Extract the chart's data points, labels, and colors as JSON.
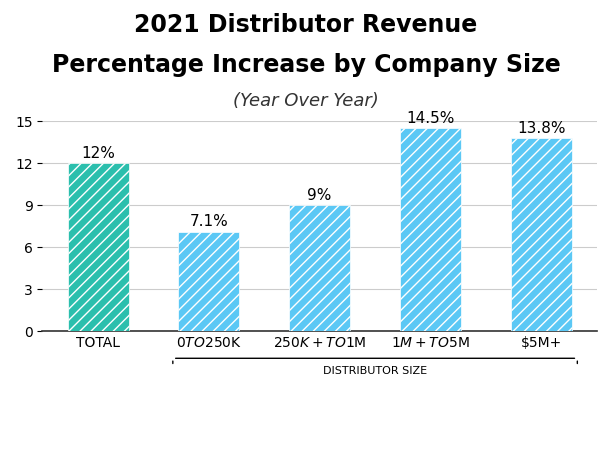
{
  "title_line1": "2021 Distributor Revenue",
  "title_line2": "Percentage Increase by Company Size",
  "title_line3": "(Year Over Year)",
  "categories": [
    "TOTAL",
    "$0 TO $250K",
    "$250K+ TO $1M",
    "$1M+ TO $5M",
    "$5M+"
  ],
  "values": [
    12.0,
    7.1,
    9.0,
    14.5,
    13.8
  ],
  "labels": [
    "12%",
    "7.1%",
    "9%",
    "14.5%",
    "13.8%"
  ],
  "bar_colors": [
    "#2BBFAD",
    "#5BC8F5",
    "#5BC8F5",
    "#5BC8F5",
    "#5BC8F5"
  ],
  "hatch_pattern": "///",
  "hatch_color": "white",
  "ylim": [
    0,
    15
  ],
  "yticks": [
    0,
    3,
    6,
    9,
    12,
    15
  ],
  "xlabel": "DISTRIBUTOR SIZE",
  "xlabel_fontsize": 8,
  "background_color": "#ffffff",
  "grid_color": "#cccccc",
  "title_fontsize": 17,
  "subtitle_fontsize": 13,
  "tick_label_fontsize": 10,
  "bar_label_fontsize": 11
}
